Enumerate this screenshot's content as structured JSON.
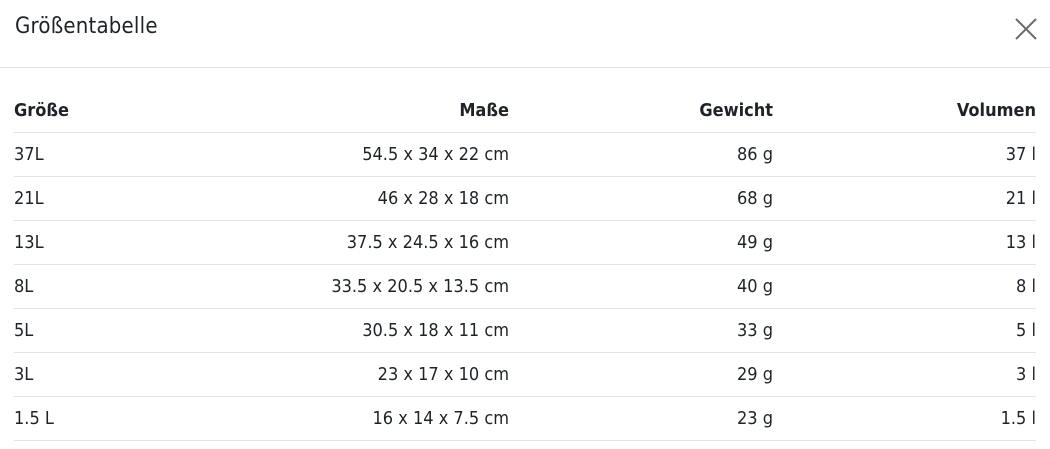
{
  "dialog": {
    "title": "Größentabelle",
    "close_icon": "close-icon"
  },
  "table": {
    "headers": [
      "Größe",
      "Maße",
      "Gewicht",
      "Volumen"
    ],
    "rows": [
      [
        "37L",
        "54.5 x 34 x 22 cm",
        "86 g",
        "37 l"
      ],
      [
        "21L",
        "46 x 28 x 18 cm",
        "68 g",
        "21 l"
      ],
      [
        "13L",
        "37.5 x 24.5 x 16 cm",
        "49 g",
        "13 l"
      ],
      [
        "8L",
        "33.5 x 20.5 x 13.5 cm",
        "40 g",
        "8 l"
      ],
      [
        "5L",
        "30.5 x 18 x 11 cm",
        "33 g",
        "5 l"
      ],
      [
        "3L",
        "23 x 17 x 10 cm",
        "29 g",
        "3 l"
      ],
      [
        "1.5 L",
        "16 x 14 x 7.5 cm",
        "23 g",
        "1.5 l"
      ]
    ]
  }
}
